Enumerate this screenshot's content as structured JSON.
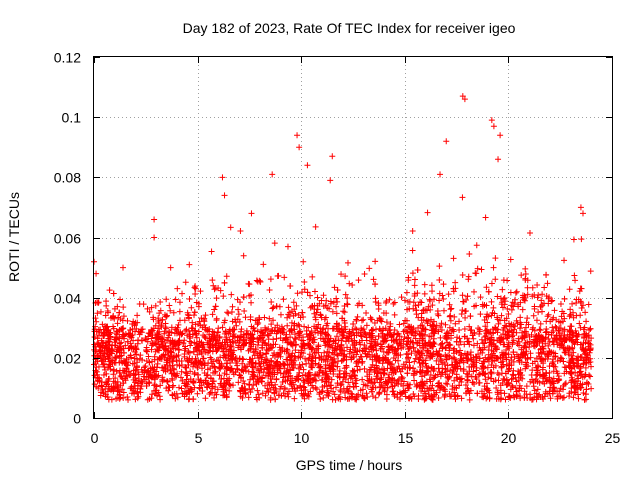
{
  "chart_data": {
    "type": "scatter",
    "title": "Day 182 of 2023, Rate Of TEC Index for receiver igeo",
    "xlabel": "GPS time / hours",
    "ylabel": "ROTI / TECUs",
    "xlim": [
      0,
      25
    ],
    "ylim": [
      0,
      0.12
    ],
    "xticks": [
      "0",
      "5",
      "10",
      "15",
      "20",
      "25"
    ],
    "yticks": [
      "0",
      "0.02",
      "0.04",
      "0.06",
      "0.08",
      "0.1",
      "0.12"
    ],
    "grid": true,
    "marker": "+",
    "color": "#ff0000",
    "time_range_hours": [
      0,
      24
    ],
    "baseline_range": [
      0.006,
      0.03
    ],
    "series": [
      {
        "name": "",
        "notable_points": [
          {
            "x": 0.1,
            "y": 0.048
          },
          {
            "x": 1.4,
            "y": 0.05
          },
          {
            "x": 2.9,
            "y": 0.066
          },
          {
            "x": 2.9,
            "y": 0.06
          },
          {
            "x": 3.7,
            "y": 0.05
          },
          {
            "x": 4.6,
            "y": 0.051
          },
          {
            "x": 6.2,
            "y": 0.08
          },
          {
            "x": 6.3,
            "y": 0.074
          },
          {
            "x": 7.6,
            "y": 0.068
          },
          {
            "x": 8.6,
            "y": 0.081
          },
          {
            "x": 9.8,
            "y": 0.094
          },
          {
            "x": 9.9,
            "y": 0.09
          },
          {
            "x": 10.3,
            "y": 0.084
          },
          {
            "x": 11.5,
            "y": 0.087
          },
          {
            "x": 11.4,
            "y": 0.079
          },
          {
            "x": 16.7,
            "y": 0.081
          },
          {
            "x": 17.0,
            "y": 0.092
          },
          {
            "x": 17.8,
            "y": 0.107
          },
          {
            "x": 17.9,
            "y": 0.106
          },
          {
            "x": 19.2,
            "y": 0.099
          },
          {
            "x": 19.3,
            "y": 0.097
          },
          {
            "x": 19.6,
            "y": 0.094
          },
          {
            "x": 19.5,
            "y": 0.086
          },
          {
            "x": 23.5,
            "y": 0.07
          },
          {
            "x": 23.6,
            "y": 0.068
          }
        ]
      }
    ]
  }
}
